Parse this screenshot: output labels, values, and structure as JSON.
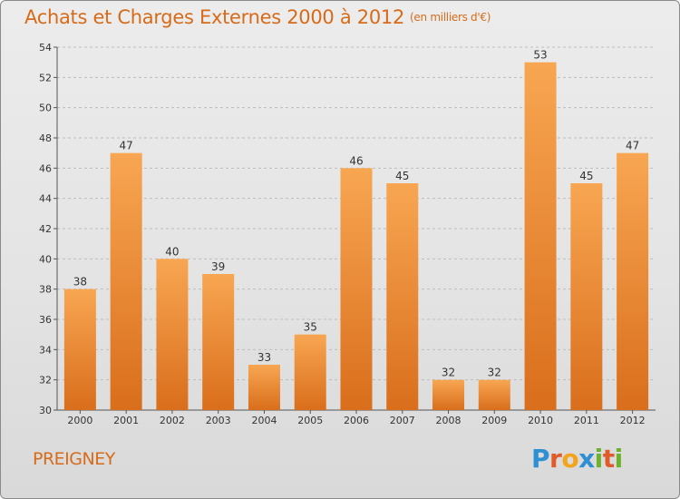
{
  "title": "Achats et Charges Externes 2000 à 2012",
  "unit": "(en milliers d'€)",
  "city": "PREIGNEY",
  "logo": {
    "text": "Proxiti",
    "letters": [
      {
        "char": "P",
        "color": "#2e8fd3"
      },
      {
        "char": "r",
        "color": "#e05a2a"
      },
      {
        "char": "o",
        "color": "#f2a41c"
      },
      {
        "char": "x",
        "color": "#2e8fd3"
      },
      {
        "char": "i",
        "color": "#6cb22c"
      },
      {
        "char": "t",
        "color": "#e05a2a"
      },
      {
        "char": "i",
        "color": "#6cb22c"
      }
    ]
  },
  "colors": {
    "accent": "#d76b19",
    "bar_light": "#f8a652",
    "bar_dark": "#d96e1c"
  },
  "chart_data": {
    "type": "bar",
    "categories": [
      "2000",
      "2001",
      "2002",
      "2003",
      "2004",
      "2005",
      "2006",
      "2007",
      "2008",
      "2009",
      "2010",
      "2011",
      "2012"
    ],
    "values": [
      38,
      47,
      40,
      39,
      33,
      35,
      46,
      45,
      32,
      32,
      53,
      45,
      47
    ],
    "ylim": [
      30,
      54
    ],
    "yticks": [
      30,
      32,
      34,
      36,
      38,
      40,
      42,
      44,
      46,
      48,
      50,
      52,
      54
    ],
    "grid": "horizontal dashed",
    "data_labels": true
  }
}
